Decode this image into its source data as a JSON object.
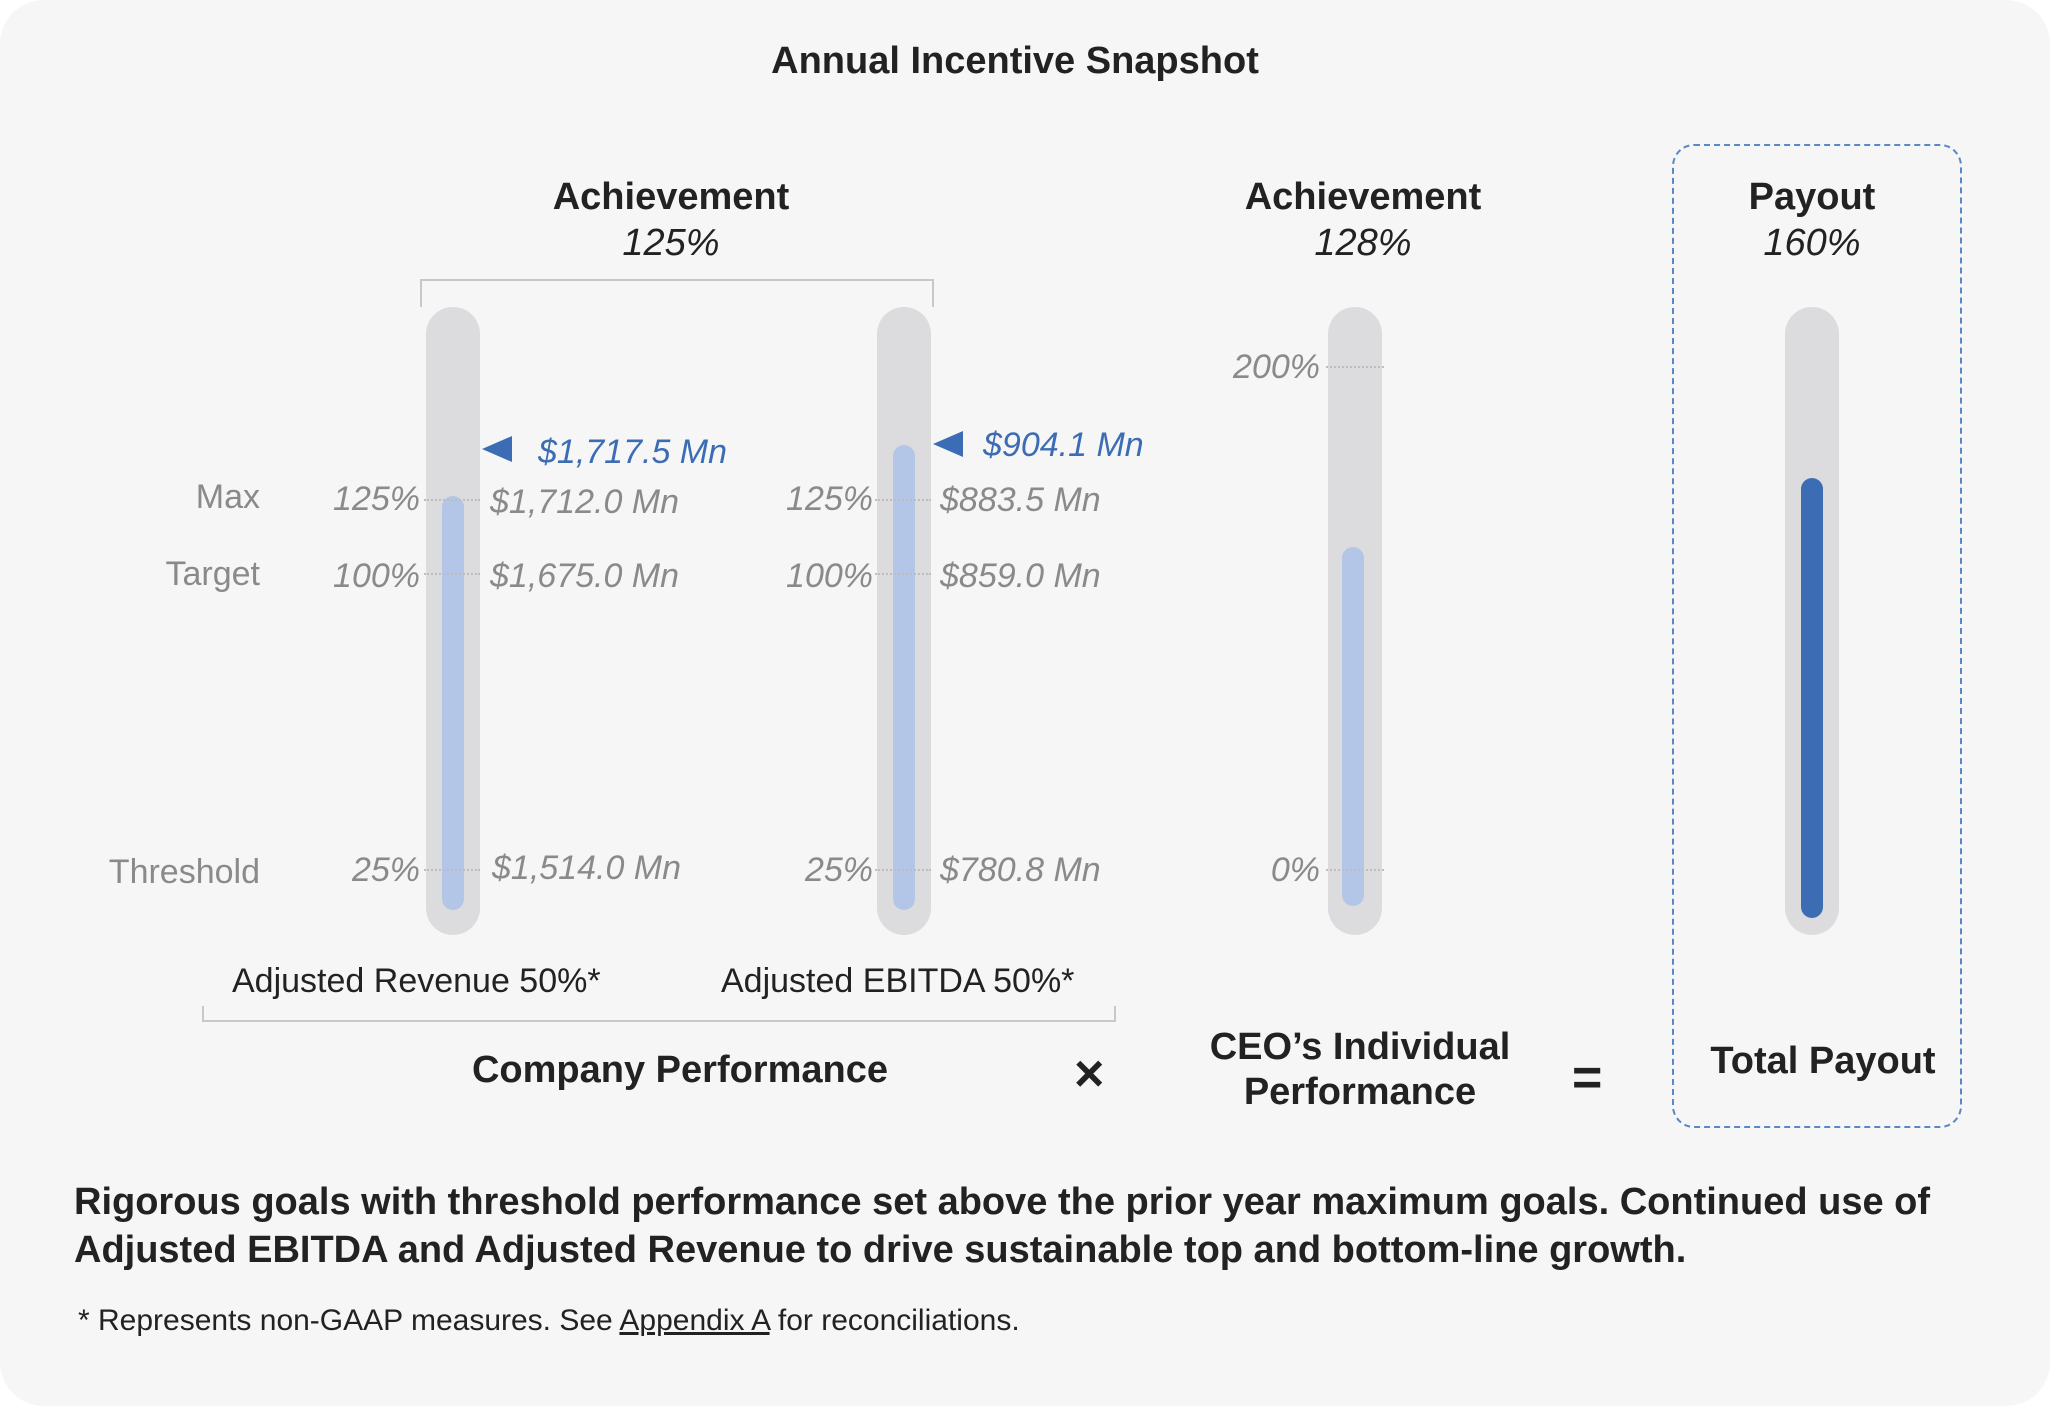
{
  "title": "Annual Incentive Snapshot",
  "company": {
    "achievement_label": "Achievement",
    "achievement_value": "125%",
    "label": "Company Performance",
    "levels": {
      "max": "Max",
      "target": "Target",
      "threshold": "Threshold"
    },
    "metrics": [
      {
        "name": "Adjusted Revenue 50%*",
        "actual": "$1,717.5 Mn",
        "max_pct": "125%",
        "max_value": "$1,712.0 Mn",
        "target_pct": "100%",
        "target_value": "$1,675.0 Mn",
        "threshold_pct": "25%",
        "threshold_value": "$1,514.0 Mn"
      },
      {
        "name": "Adjusted EBITDA 50%*",
        "actual": "$904.1 Mn",
        "max_pct": "125%",
        "max_value": "$883.5 Mn",
        "target_pct": "100%",
        "target_value": "$859.0 Mn",
        "threshold_pct": "25%",
        "threshold_value": "$780.8 Mn"
      }
    ]
  },
  "operators": {
    "multiply": "×",
    "equals": "="
  },
  "individual": {
    "achievement_label": "Achievement",
    "achievement_value": "128%",
    "label_line1": "CEO’s Individual",
    "label_line2": "Performance",
    "axis_max": "200%",
    "axis_min": "0%"
  },
  "payout": {
    "label": "Payout",
    "value": "160%",
    "total_label": "Total Payout"
  },
  "summary": "Rigorous goals with threshold performance set above the prior year maximum goals. Continued use of Adjusted EBITDA and Adjusted Revenue to drive sustainable top and bottom-line growth.",
  "footnote": {
    "prefix": "* Represents non-GAAP measures.  See ",
    "link": "Appendix A",
    "suffix": " for reconciliations."
  },
  "colors": {
    "accent": "#3c6db4",
    "light_fill": "#b4c6e7",
    "track": "#dcdcde"
  },
  "chart_data": [
    {
      "type": "bar",
      "title": "Adjusted Revenue 50%*",
      "unit": "$ Mn",
      "actual": 1717.5,
      "goals": [
        {
          "level": "Threshold",
          "payout_pct": 25,
          "value": 1514.0
        },
        {
          "level": "Target",
          "payout_pct": 100,
          "value": 1675.0
        },
        {
          "level": "Max",
          "payout_pct": 125,
          "value": 1712.0
        }
      ]
    },
    {
      "type": "bar",
      "title": "Adjusted EBITDA 50%*",
      "unit": "$ Mn",
      "actual": 904.1,
      "goals": [
        {
          "level": "Threshold",
          "payout_pct": 25,
          "value": 780.8
        },
        {
          "level": "Target",
          "payout_pct": 100,
          "value": 859.0
        },
        {
          "level": "Max",
          "payout_pct": 125,
          "value": 883.5
        }
      ]
    },
    {
      "type": "bar",
      "title": "CEO’s Individual Performance",
      "achievement_pct": 128,
      "ylim": [
        0,
        200
      ]
    },
    {
      "type": "bar",
      "title": "Total Payout",
      "payout_pct": 160
    }
  ]
}
